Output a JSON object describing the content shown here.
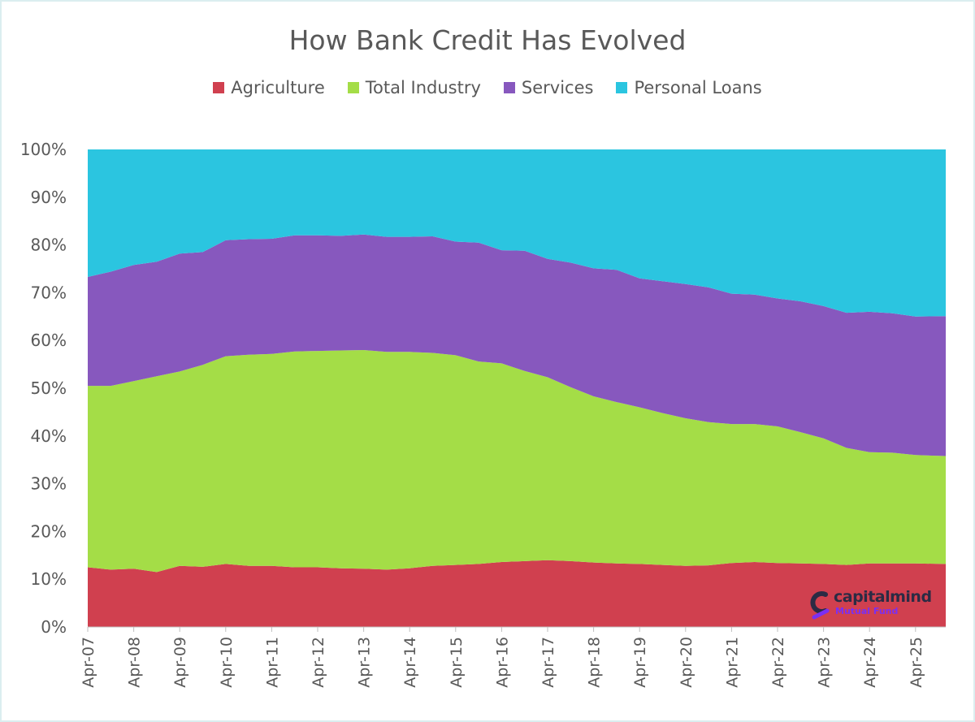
{
  "chart_data": {
    "type": "area",
    "stacked": "percent",
    "title": "How Bank Credit Has Evolved",
    "x_tick_labels": [
      "Apr-07",
      "Apr-08",
      "Apr-09",
      "Apr-10",
      "Apr-11",
      "Apr-12",
      "Apr-13",
      "Apr-14",
      "Apr-15",
      "Apr-16",
      "Apr-17",
      "Apr-18",
      "Apr-19",
      "Apr-20",
      "Apr-21",
      "Apr-22",
      "Apr-23",
      "Apr-24",
      "Apr-25"
    ],
    "x_end": "Oct-25",
    "y_tick_labels": [
      "0%",
      "10%",
      "20%",
      "30%",
      "40%",
      "50%",
      "60%",
      "70%",
      "80%",
      "90%",
      "100%"
    ],
    "ylim": [
      0,
      100
    ],
    "legend_position": "top",
    "grid": false,
    "x": [
      "Apr-07",
      "Oct-07",
      "Apr-08",
      "Oct-08",
      "Apr-09",
      "Oct-09",
      "Apr-10",
      "Oct-10",
      "Apr-11",
      "Oct-11",
      "Apr-12",
      "Oct-12",
      "Apr-13",
      "Oct-13",
      "Apr-14",
      "Oct-14",
      "Apr-15",
      "Oct-15",
      "Apr-16",
      "Oct-16",
      "Apr-17",
      "Oct-17",
      "Apr-18",
      "Oct-18",
      "Apr-19",
      "Oct-19",
      "Apr-20",
      "Oct-20",
      "Apr-21",
      "Oct-21",
      "Apr-22",
      "Oct-22",
      "Apr-23",
      "Oct-23",
      "Apr-24",
      "Oct-24",
      "Apr-25",
      "Oct-25"
    ],
    "series": [
      {
        "name": "Agriculture",
        "color": "#d0404f",
        "values": [
          12.5,
          12.0,
          12.2,
          11.5,
          12.8,
          12.6,
          13.2,
          12.8,
          12.8,
          12.5,
          12.5,
          12.3,
          12.2,
          12.0,
          12.3,
          12.8,
          13.0,
          13.2,
          13.6,
          13.8,
          14.0,
          13.8,
          13.5,
          13.3,
          13.2,
          13.0,
          12.8,
          12.9,
          13.4,
          13.6,
          13.4,
          13.3,
          13.2,
          13.0,
          13.3,
          13.3,
          13.3,
          13.2
        ]
      },
      {
        "name": "Total Industry",
        "color": "#a4dd47",
        "values": [
          38.0,
          38.5,
          39.3,
          41.0,
          40.7,
          42.3,
          43.5,
          44.2,
          44.4,
          45.2,
          45.3,
          45.6,
          45.8,
          45.6,
          45.3,
          44.6,
          43.9,
          42.4,
          41.6,
          39.8,
          38.3,
          36.4,
          34.8,
          33.8,
          32.8,
          31.8,
          30.9,
          30.0,
          29.1,
          28.9,
          28.6,
          27.5,
          26.3,
          24.5,
          23.3,
          23.2,
          22.7,
          22.6
        ]
      },
      {
        "name": "Services",
        "color": "#8758be",
        "values": [
          22.8,
          23.9,
          24.3,
          24.0,
          24.7,
          23.6,
          24.3,
          24.2,
          24.1,
          24.3,
          24.2,
          24.0,
          24.2,
          24.1,
          24.1,
          24.4,
          23.8,
          24.9,
          23.7,
          25.2,
          24.8,
          26.1,
          26.8,
          27.7,
          27.0,
          27.6,
          28.1,
          28.2,
          27.3,
          27.1,
          26.8,
          27.4,
          27.7,
          28.3,
          29.4,
          29.2,
          29.0,
          29.3
        ]
      },
      {
        "name": "Personal Loans",
        "color": "#2bc5e0",
        "values": [
          26.7,
          25.6,
          24.2,
          23.5,
          21.8,
          21.5,
          19.0,
          18.8,
          18.7,
          18.0,
          18.0,
          18.1,
          17.8,
          18.3,
          18.3,
          18.2,
          19.3,
          19.5,
          21.1,
          21.2,
          22.9,
          23.7,
          24.9,
          25.2,
          27.0,
          27.6,
          28.2,
          28.9,
          30.2,
          30.4,
          31.2,
          31.8,
          32.8,
          34.2,
          34.0,
          34.3,
          35.0,
          34.9
        ]
      }
    ]
  },
  "logo": {
    "name": "capitalmind",
    "subtitle": "Mutual Fund",
    "icon": "capitalmind-logo-icon"
  }
}
